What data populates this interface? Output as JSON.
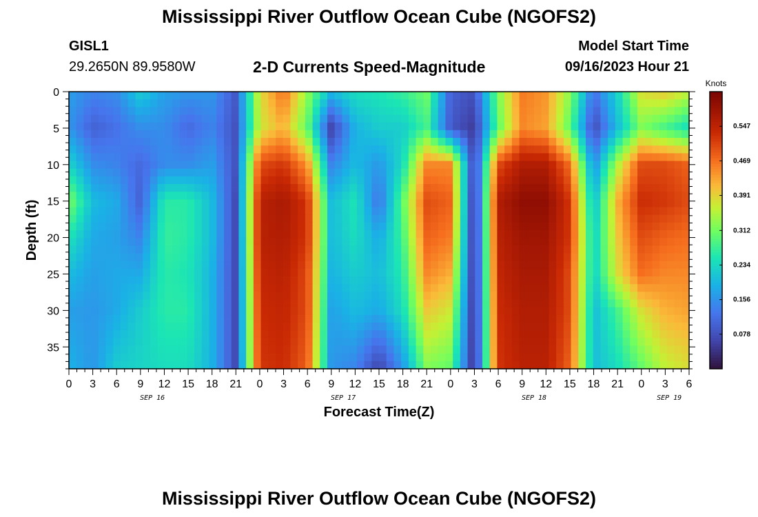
{
  "header": {
    "title": "Mississippi River Outflow Ocean Cube (NGOFS2)",
    "station": "GISL1",
    "coordinates": "29.2650N  89.9580W",
    "subtitle": "2-D Currents Speed-Magnitude",
    "model_start_label": "Model Start Time",
    "model_start_value": "09/16/2023 Hour 21"
  },
  "footer": {
    "title": "Mississippi River Outflow Ocean Cube (NGOFS2)"
  },
  "chart_data": {
    "type": "heatmap",
    "title": "2-D Currents Speed-Magnitude",
    "xlabel": "Forecast Time(Z)",
    "ylabel": "Depth (ft)",
    "xlim": [
      0,
      78
    ],
    "ylim": [
      38,
      0
    ],
    "x_tick_values": [
      0,
      3,
      6,
      9,
      12,
      15,
      18,
      21,
      24,
      27,
      30,
      33,
      36,
      39,
      42,
      45,
      48,
      51,
      54,
      57,
      60,
      63,
      66,
      69,
      72,
      75,
      78
    ],
    "x_tick_labels": [
      "0",
      "3",
      "6",
      "9",
      "12",
      "15",
      "18",
      "21",
      "0",
      "3",
      "6",
      "9",
      "12",
      "15",
      "18",
      "21",
      "0",
      "3",
      "6",
      "9",
      "12",
      "15",
      "18",
      "21",
      "0",
      "3",
      "6"
    ],
    "date_labels": [
      {
        "label": "SEP 16",
        "hour": 10.5
      },
      {
        "label": "SEP 17",
        "hour": 34.5
      },
      {
        "label": "SEP 18",
        "hour": 58.5
      },
      {
        "label": "SEP 19",
        "hour": 75.5
      }
    ],
    "y_ticks": [
      0,
      5,
      10,
      15,
      20,
      25,
      30,
      35
    ],
    "colorbar": {
      "label": "Knots",
      "min": 0.0,
      "max": 0.625,
      "tick_values": [
        0.078,
        0.156,
        0.234,
        0.312,
        0.391,
        0.469,
        0.547
      ],
      "tick_labels": [
        "0.078",
        "0.156",
        "0.234",
        "0.312",
        "0.391",
        "0.469",
        "0.547"
      ]
    },
    "time_hours": [
      0,
      3,
      6,
      9,
      12,
      15,
      18,
      21,
      24,
      27,
      30,
      33,
      36,
      39,
      42,
      45,
      48,
      51,
      54,
      57,
      60,
      63,
      66,
      69,
      72,
      75,
      78
    ],
    "depth_ft": [
      0,
      5,
      10,
      15,
      20,
      25,
      30,
      38
    ],
    "speed_knots": [
      [
        0.17,
        0.14,
        0.15,
        0.22,
        0.17,
        0.16,
        0.16,
        0.09,
        0.38,
        0.47,
        0.33,
        0.2,
        0.24,
        0.25,
        0.27,
        0.31,
        0.1,
        0.08,
        0.32,
        0.46,
        0.44,
        0.33,
        0.12,
        0.23,
        0.38,
        0.4,
        0.36
      ],
      [
        0.16,
        0.1,
        0.12,
        0.15,
        0.15,
        0.11,
        0.14,
        0.08,
        0.37,
        0.42,
        0.3,
        0.06,
        0.19,
        0.22,
        0.22,
        0.28,
        0.09,
        0.05,
        0.3,
        0.45,
        0.43,
        0.3,
        0.07,
        0.2,
        0.32,
        0.28,
        0.24
      ],
      [
        0.23,
        0.15,
        0.14,
        0.11,
        0.15,
        0.15,
        0.17,
        0.08,
        0.5,
        0.52,
        0.44,
        0.14,
        0.2,
        0.16,
        0.24,
        0.45,
        0.45,
        0.05,
        0.5,
        0.56,
        0.56,
        0.47,
        0.15,
        0.35,
        0.5,
        0.5,
        0.48
      ],
      [
        0.32,
        0.2,
        0.18,
        0.1,
        0.26,
        0.26,
        0.2,
        0.07,
        0.55,
        0.57,
        0.52,
        0.2,
        0.25,
        0.12,
        0.3,
        0.5,
        0.48,
        0.03,
        0.56,
        0.6,
        0.6,
        0.52,
        0.2,
        0.42,
        0.53,
        0.52,
        0.5
      ],
      [
        0.25,
        0.18,
        0.17,
        0.14,
        0.27,
        0.26,
        0.2,
        0.07,
        0.55,
        0.56,
        0.52,
        0.2,
        0.24,
        0.18,
        0.28,
        0.48,
        0.46,
        0.03,
        0.55,
        0.58,
        0.58,
        0.52,
        0.22,
        0.4,
        0.5,
        0.48,
        0.47
      ],
      [
        0.2,
        0.17,
        0.18,
        0.18,
        0.26,
        0.25,
        0.19,
        0.07,
        0.54,
        0.55,
        0.5,
        0.19,
        0.22,
        0.2,
        0.26,
        0.45,
        0.42,
        0.03,
        0.54,
        0.57,
        0.57,
        0.5,
        0.22,
        0.38,
        0.47,
        0.45,
        0.45
      ],
      [
        0.17,
        0.16,
        0.18,
        0.22,
        0.26,
        0.26,
        0.19,
        0.07,
        0.53,
        0.54,
        0.5,
        0.17,
        0.2,
        0.18,
        0.24,
        0.4,
        0.37,
        0.03,
        0.53,
        0.56,
        0.56,
        0.5,
        0.2,
        0.28,
        0.38,
        0.42,
        0.43
      ],
      [
        0.19,
        0.16,
        0.22,
        0.23,
        0.24,
        0.24,
        0.19,
        0.07,
        0.52,
        0.53,
        0.48,
        0.16,
        0.14,
        0.06,
        0.16,
        0.32,
        0.3,
        0.03,
        0.52,
        0.55,
        0.55,
        0.48,
        0.2,
        0.24,
        0.3,
        0.36,
        0.38
      ]
    ]
  }
}
